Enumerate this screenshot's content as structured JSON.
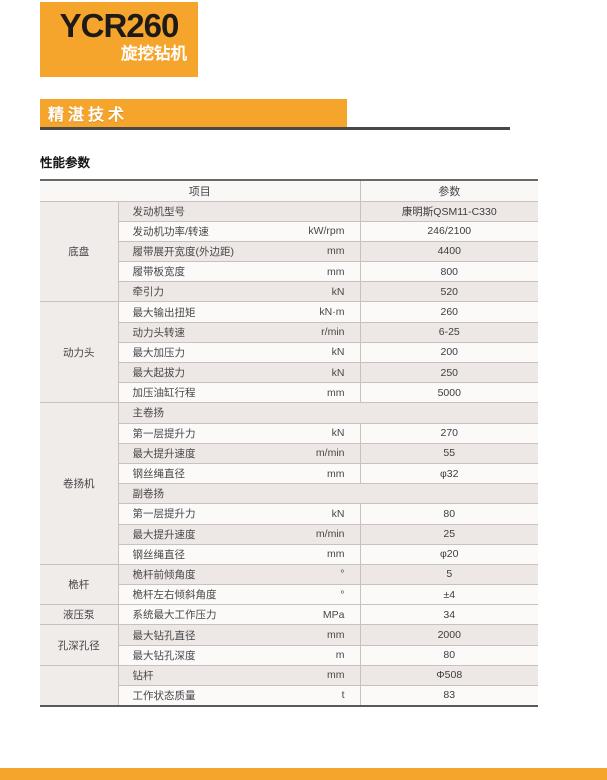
{
  "logo": {
    "model": "YCR260",
    "product": "旋挖钻机"
  },
  "banner": {
    "title": "精湛技术"
  },
  "table_title": "性能参数",
  "colors": {
    "accent_orange": "#F5A42C",
    "row_gray": "#EDE8E5",
    "row_white": "#FCFAF8",
    "category_bg": "#F0ECE9",
    "grid_line": "#C7C2BE",
    "dark_rule": "#4B4744"
  },
  "table": {
    "headers": {
      "item": "项目",
      "param": "参数"
    },
    "sections": [
      {
        "category": "底盘",
        "rows": [
          {
            "name": "发动机型号",
            "unit": "",
            "value": "康明斯QSM11-C330",
            "shade": "gray"
          },
          {
            "name": "发动机功率/转速",
            "unit": "kW/rpm",
            "value": "246/2100",
            "shade": "white"
          },
          {
            "name": "履带展开宽度(外边距)",
            "unit": "mm",
            "value": "4400",
            "shade": "gray"
          },
          {
            "name": "履带板宽度",
            "unit": "mm",
            "value": "800",
            "shade": "white"
          },
          {
            "name": "牵引力",
            "unit": "kN",
            "value": "520",
            "shade": "gray"
          }
        ]
      },
      {
        "category": "动力头",
        "rows": [
          {
            "name": "最大输出扭矩",
            "unit": "kN·m",
            "value": "260",
            "shade": "white"
          },
          {
            "name": "动力头转速",
            "unit": "r/min",
            "value": "6-25",
            "shade": "gray"
          },
          {
            "name": "最大加压力",
            "unit": "kN",
            "value": "200",
            "shade": "white"
          },
          {
            "name": "最大起拔力",
            "unit": "kN",
            "value": "250",
            "shade": "gray"
          },
          {
            "name": "加压油缸行程",
            "unit": "mm",
            "value": "5000",
            "shade": "white"
          }
        ]
      },
      {
        "category": "卷扬机",
        "rows": [
          {
            "name": "主卷扬",
            "sub": true,
            "shade": "gray"
          },
          {
            "name": "第一层提升力",
            "unit": "kN",
            "value": "270",
            "shade": "white"
          },
          {
            "name": "最大提升速度",
            "unit": "m/min",
            "value": "55",
            "shade": "gray"
          },
          {
            "name": "钢丝绳直径",
            "unit": "mm",
            "value": "φ32",
            "shade": "white"
          },
          {
            "name": "副卷扬",
            "sub": true,
            "shade": "gray"
          },
          {
            "name": "第一层提升力",
            "unit": "kN",
            "value": "80",
            "shade": "white"
          },
          {
            "name": "最大提升速度",
            "unit": "m/min",
            "value": "25",
            "shade": "gray"
          },
          {
            "name": "钢丝绳直径",
            "unit": "mm",
            "value": "φ20",
            "shade": "white"
          }
        ]
      },
      {
        "category": "桅杆",
        "rows": [
          {
            "name": "桅杆前倾角度",
            "unit": "°",
            "value": "5",
            "shade": "gray"
          },
          {
            "name": "桅杆左右倾斜角度",
            "unit": "°",
            "value": "±4",
            "shade": "white"
          }
        ]
      },
      {
        "category": "液压泵",
        "rows": [
          {
            "name": "系统最大工作压力",
            "unit": "MPa",
            "value": "34",
            "shade": "white"
          }
        ]
      },
      {
        "category": "孔深孔径",
        "rows": [
          {
            "name": "最大钻孔直径",
            "unit": "mm",
            "value": "2000",
            "shade": "gray"
          },
          {
            "name": "最大钻孔深度",
            "unit": "m",
            "value": "80",
            "shade": "white"
          }
        ]
      },
      {
        "category": "",
        "rows": [
          {
            "name": "钻杆",
            "unit": "mm",
            "value": "Φ508",
            "shade": "gray"
          },
          {
            "name": "工作状态质量",
            "unit": "t",
            "value": "83",
            "shade": "white"
          }
        ]
      }
    ]
  }
}
